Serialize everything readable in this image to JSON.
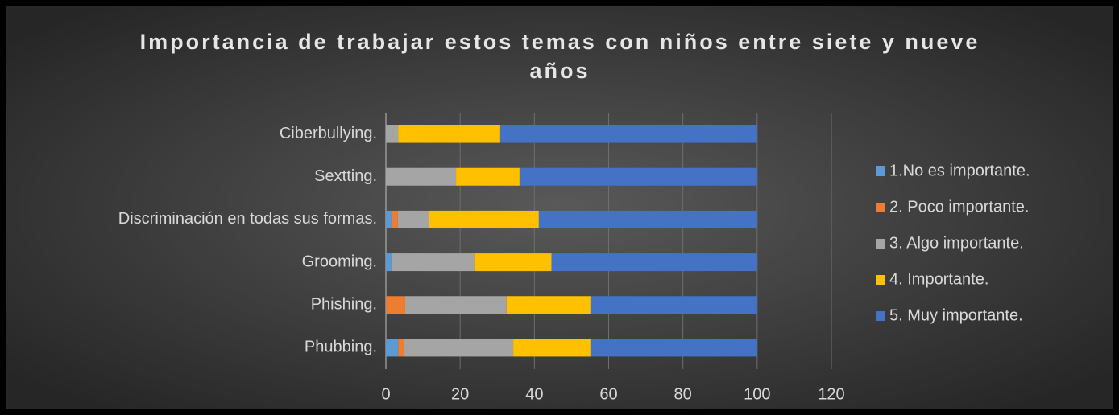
{
  "chart_data": {
    "type": "stacked_barh",
    "title": "Importancia de trabajar estos temas con niños entre siete y nueve años",
    "categories": [
      "Ciberbullying.",
      "Sextting.",
      "Discriminación en todas sus formas.",
      "Grooming.",
      "Phishing.",
      "Phubbing."
    ],
    "series": [
      {
        "name": "1.No es importante.",
        "color": "#5b9bd5",
        "values": [
          0,
          0,
          1.5,
          1.5,
          0,
          3.3
        ]
      },
      {
        "name": "2. Poco importante.",
        "color": "#ed7d31",
        "values": [
          0,
          0,
          1.7,
          0,
          5.2,
          1.5
        ]
      },
      {
        "name": "3. Algo importante.",
        "color": "#a5a5a5",
        "values": [
          3.3,
          18.9,
          8.5,
          22.3,
          27.3,
          29.5
        ]
      },
      {
        "name": "4. Importante.",
        "color": "#ffc000",
        "values": [
          27.5,
          17.1,
          29.5,
          20.8,
          22.6,
          20.8
        ]
      },
      {
        "name": "5. Muy importante.",
        "color": "#4472c4",
        "values": [
          69.2,
          64.0,
          58.8,
          55.4,
          44.9,
          44.9
        ]
      }
    ],
    "xlim": [
      0,
      120
    ],
    "xticks": [
      0,
      20,
      40,
      60,
      80,
      100,
      120
    ],
    "grid": true,
    "legend": "right"
  }
}
